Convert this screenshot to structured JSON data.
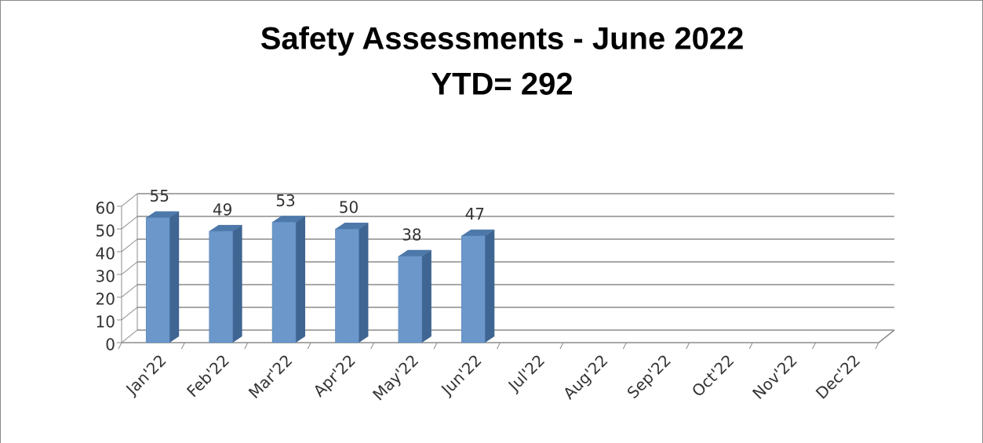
{
  "chart_data": {
    "type": "bar3d",
    "title": "Safety Assessments - June 2022",
    "subtitle": "YTD= 292",
    "categories": [
      "Jan'22",
      "Feb'22",
      "Mar'22",
      "Apr'22",
      "May'22",
      "Jun'22",
      "Jul'22",
      "Aug'22",
      "Sep'22",
      "Oct'22",
      "Nov'22",
      "Dec'22"
    ],
    "values": [
      55,
      49,
      53,
      50,
      38,
      47,
      null,
      null,
      null,
      null,
      null,
      null
    ],
    "color": "#6b97cb",
    "ylim": [
      0,
      60
    ],
    "yticks": [
      0,
      10,
      20,
      30,
      40,
      50,
      60
    ],
    "grid": true
  }
}
